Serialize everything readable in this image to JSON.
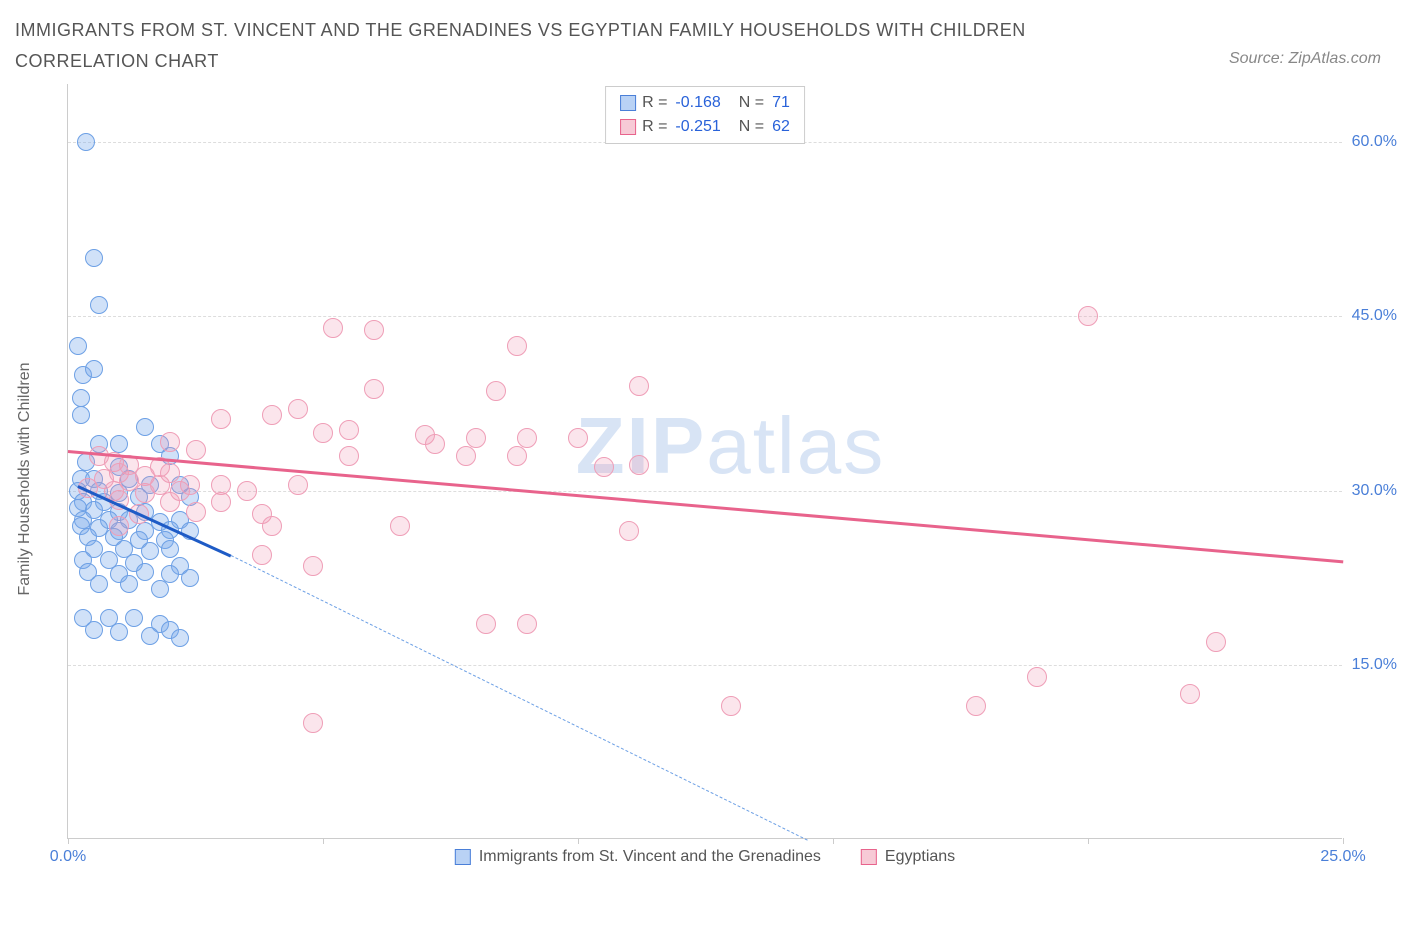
{
  "title": "IMMIGRANTS FROM ST. VINCENT AND THE GRENADINES VS EGYPTIAN FAMILY HOUSEHOLDS WITH CHILDREN CORRELATION CHART",
  "source": "Source: ZipAtlas.com",
  "y_axis_label": "Family Households with Children",
  "watermark_a": "ZIP",
  "watermark_b": "atlas",
  "xlim": [
    0,
    25
  ],
  "ylim": [
    0,
    65
  ],
  "x_ticks": [
    0,
    5,
    10,
    15,
    20,
    25
  ],
  "x_tick_labels": {
    "0": "0.0%",
    "25": "25.0%"
  },
  "y_ticks": [
    15,
    30,
    45,
    60
  ],
  "y_tick_labels": {
    "15": "15.0%",
    "30": "30.0%",
    "45": "45.0%",
    "60": "60.0%"
  },
  "gridlines_y": [
    15,
    30,
    45,
    60
  ],
  "legend_stats": [
    {
      "swatch_fill": "#b9d2f5",
      "swatch_border": "#4a7fd8",
      "r": "-0.168",
      "n": "71"
    },
    {
      "swatch_fill": "#f7cad6",
      "swatch_border": "#e8638c",
      "r": "-0.251",
      "n": "62"
    }
  ],
  "bottom_legend": [
    {
      "swatch_fill": "#b9d2f5",
      "swatch_border": "#4a7fd8",
      "label": "Immigrants from St. Vincent and the Grenadines"
    },
    {
      "swatch_fill": "#f7cad6",
      "swatch_border": "#e8638c",
      "label": "Egyptians"
    }
  ],
  "series": [
    {
      "name": "blue",
      "fill": "rgba(120,170,235,0.35)",
      "stroke": "#6da0e5",
      "radius": 9,
      "points": [
        [
          0.35,
          60.0
        ],
        [
          0.5,
          50.0
        ],
        [
          0.6,
          46.0
        ],
        [
          0.2,
          42.5
        ],
        [
          0.3,
          40.0
        ],
        [
          0.5,
          40.5
        ],
        [
          0.25,
          38.0
        ],
        [
          0.25,
          36.5
        ],
        [
          1.5,
          35.5
        ],
        [
          0.6,
          34.0
        ],
        [
          1.0,
          34.0
        ],
        [
          1.8,
          34.0
        ],
        [
          0.35,
          32.5
        ],
        [
          1.0,
          32.0
        ],
        [
          2.0,
          33.0
        ],
        [
          0.25,
          31.0
        ],
        [
          0.5,
          31.0
        ],
        [
          1.2,
          31.0
        ],
        [
          1.6,
          30.5
        ],
        [
          2.2,
          30.5
        ],
        [
          0.2,
          30.0
        ],
        [
          0.6,
          30.0
        ],
        [
          1.0,
          29.8
        ],
        [
          1.4,
          29.5
        ],
        [
          0.3,
          29.0
        ],
        [
          0.7,
          29.0
        ],
        [
          2.4,
          29.5
        ],
        [
          0.2,
          28.5
        ],
        [
          0.5,
          28.3
        ],
        [
          1.0,
          28.2
        ],
        [
          1.5,
          28.2
        ],
        [
          0.3,
          27.5
        ],
        [
          0.8,
          27.5
        ],
        [
          1.2,
          27.5
        ],
        [
          1.8,
          27.3
        ],
        [
          2.2,
          27.5
        ],
        [
          0.25,
          27.0
        ],
        [
          0.6,
          26.8
        ],
        [
          1.0,
          26.5
        ],
        [
          1.5,
          26.5
        ],
        [
          2.0,
          26.6
        ],
        [
          0.4,
          26.0
        ],
        [
          0.9,
          26.0
        ],
        [
          1.4,
          25.8
        ],
        [
          1.9,
          25.8
        ],
        [
          2.4,
          26.5
        ],
        [
          0.5,
          25.0
        ],
        [
          1.1,
          25.0
        ],
        [
          1.6,
          24.8
        ],
        [
          2.0,
          25.0
        ],
        [
          0.3,
          24.0
        ],
        [
          0.8,
          24.0
        ],
        [
          1.3,
          23.8
        ],
        [
          2.2,
          23.5
        ],
        [
          0.4,
          23.0
        ],
        [
          1.0,
          22.8
        ],
        [
          1.5,
          23.0
        ],
        [
          2.0,
          22.8
        ],
        [
          2.4,
          22.5
        ],
        [
          0.6,
          22.0
        ],
        [
          1.2,
          22.0
        ],
        [
          1.8,
          21.5
        ],
        [
          0.3,
          19.0
        ],
        [
          0.8,
          19.0
        ],
        [
          1.3,
          19.0
        ],
        [
          1.8,
          18.5
        ],
        [
          2.0,
          18.0
        ],
        [
          0.5,
          18.0
        ],
        [
          1.0,
          17.8
        ],
        [
          1.6,
          17.5
        ],
        [
          2.2,
          17.3
        ]
      ]
    },
    {
      "name": "pink",
      "fill": "rgba(240,150,180,0.25)",
      "stroke": "#ef9eb7",
      "radius": 10,
      "points": [
        [
          20.0,
          45.0
        ],
        [
          5.2,
          44.0
        ],
        [
          6.0,
          43.8
        ],
        [
          8.8,
          42.5
        ],
        [
          6.0,
          38.8
        ],
        [
          8.4,
          38.6
        ],
        [
          11.2,
          39.0
        ],
        [
          4.5,
          37.0
        ],
        [
          4.0,
          36.5
        ],
        [
          3.0,
          36.2
        ],
        [
          5.0,
          35.0
        ],
        [
          5.5,
          35.2
        ],
        [
          7.0,
          34.8
        ],
        [
          8.0,
          34.5
        ],
        [
          9.0,
          34.5
        ],
        [
          10.0,
          34.5
        ],
        [
          7.2,
          34.0
        ],
        [
          2.0,
          34.2
        ],
        [
          2.5,
          33.5
        ],
        [
          5.5,
          33.0
        ],
        [
          7.8,
          33.0
        ],
        [
          8.8,
          33.0
        ],
        [
          10.5,
          32.0
        ],
        [
          11.2,
          32.2
        ],
        [
          0.6,
          33.0
        ],
        [
          0.9,
          32.5
        ],
        [
          1.2,
          32.2
        ],
        [
          1.8,
          32.0
        ],
        [
          1.0,
          31.5
        ],
        [
          1.5,
          31.3
        ],
        [
          2.0,
          31.5
        ],
        [
          0.7,
          31.0
        ],
        [
          1.2,
          30.8
        ],
        [
          1.8,
          30.5
        ],
        [
          2.4,
          30.5
        ],
        [
          3.0,
          30.5
        ],
        [
          0.4,
          30.2
        ],
        [
          0.9,
          30.0
        ],
        [
          1.5,
          29.8
        ],
        [
          2.2,
          30.0
        ],
        [
          3.5,
          30.0
        ],
        [
          4.5,
          30.5
        ],
        [
          1.0,
          29.2
        ],
        [
          2.0,
          29.0
        ],
        [
          3.0,
          29.0
        ],
        [
          2.5,
          28.2
        ],
        [
          3.8,
          28.0
        ],
        [
          1.4,
          28.0
        ],
        [
          1.0,
          27.0
        ],
        [
          4.0,
          27.0
        ],
        [
          6.5,
          27.0
        ],
        [
          11.0,
          26.5
        ],
        [
          3.8,
          24.5
        ],
        [
          4.8,
          23.5
        ],
        [
          4.8,
          10.0
        ],
        [
          8.2,
          18.5
        ],
        [
          9.0,
          18.5
        ],
        [
          13.0,
          11.5
        ],
        [
          17.8,
          11.5
        ],
        [
          19.0,
          14.0
        ],
        [
          22.5,
          17.0
        ],
        [
          22.0,
          12.5
        ]
      ]
    }
  ],
  "trend_lines": [
    {
      "color": "#1e5bc6",
      "x1": 0.2,
      "y1": 30.5,
      "x2": 3.2,
      "y2": 24.5,
      "width": 2.5,
      "dashed": false
    },
    {
      "color": "#1e5bc6",
      "x1": 3.2,
      "y1": 24.5,
      "x2": 14.5,
      "y2": 0.0,
      "width": 1.5,
      "dashed": true
    },
    {
      "color": "#e8638c",
      "x1": 0.0,
      "y1": 33.5,
      "x2": 25.0,
      "y2": 24.0,
      "width": 2.5,
      "dashed": false
    }
  ],
  "dashed_color": "#6da0e5"
}
